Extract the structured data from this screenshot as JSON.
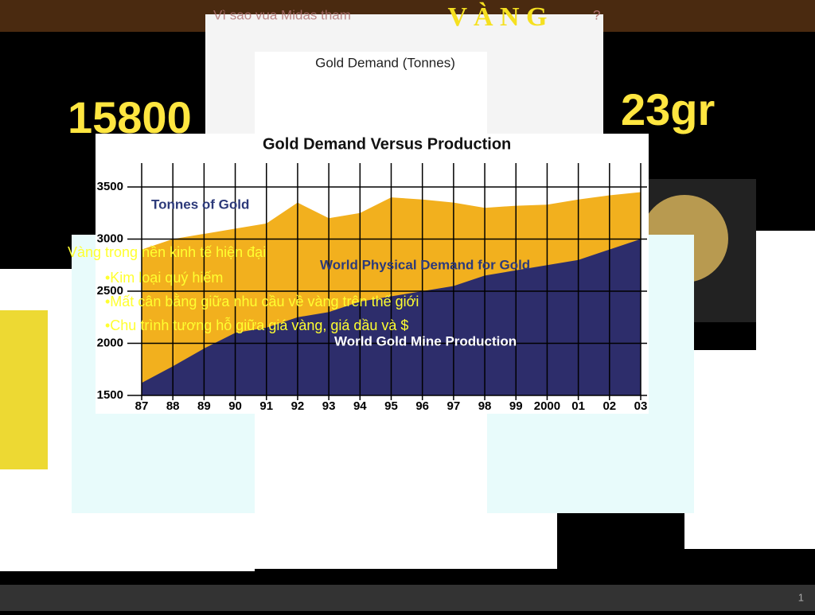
{
  "slide": {
    "title_prefix": "Vì sao vua Midas tham",
    "title_word": "V À N G",
    "title_suffix": "?",
    "big_left": "15800",
    "big_right": "23gr",
    "heading": "Vàng trong nền kinh tế hiện đại",
    "bullets": [
      "•Kim loại quý hiếm",
      "•Mất cân bằng giữa nhu cầu về vàng trên thế giới",
      "•Chu trình tương hỗ giữa giá vàng, giá dầu và $"
    ],
    "back_chart_title": "Gold Demand (Tonnes)",
    "slide_number": "1"
  },
  "chart_data": {
    "type": "area",
    "title": "Gold Demand Versus Production",
    "y_label": "Tonnes of Gold",
    "categories": [
      "87",
      "88",
      "89",
      "90",
      "91",
      "92",
      "93",
      "94",
      "95",
      "96",
      "97",
      "98",
      "99",
      "2000",
      "01",
      "02",
      "03"
    ],
    "series": [
      {
        "name": "World Physical Demand for Gold",
        "color": "#f2b01e",
        "values": [
          2900,
          3000,
          3050,
          3100,
          3150,
          3350,
          3200,
          3250,
          3400,
          3380,
          3350,
          3300,
          3320,
          3330,
          3380,
          3420,
          3450
        ]
      },
      {
        "name": "World Gold Mine Production",
        "color": "#2d2d6b",
        "values": [
          1620,
          1780,
          1950,
          2100,
          2150,
          2250,
          2300,
          2400,
          2450,
          2500,
          2550,
          2650,
          2700,
          2750,
          2800,
          2900,
          3000
        ]
      }
    ],
    "ylim": [
      1500,
      3500
    ],
    "yticks": [
      1500,
      2000,
      2500,
      3000,
      3500
    ],
    "grid": true
  }
}
